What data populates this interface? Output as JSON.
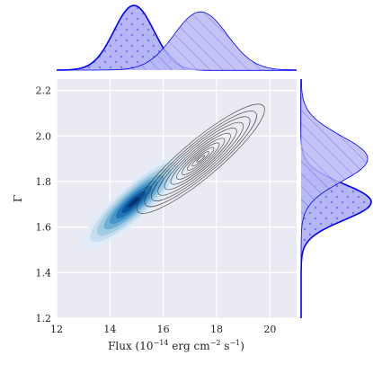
{
  "chart_data": {
    "type": "kde-joint",
    "xlabel": "Flux (10",
    "xlabel_sup1": "−14",
    "xlabel_mid": " erg cm",
    "xlabel_sup2": "−2",
    "xlabel_mid2": " s",
    "xlabel_sup3": "−1",
    "xlabel_end": ")",
    "ylabel": "Γ",
    "xlim": [
      12,
      21
    ],
    "ylim": [
      1.2,
      2.25
    ],
    "x_ticks": [
      12,
      14,
      16,
      18,
      20
    ],
    "y_ticks": [
      1.2,
      1.4,
      1.6,
      1.8,
      2.0,
      2.2
    ],
    "x_tick_labels": [
      "12",
      "14",
      "16",
      "18",
      "20"
    ],
    "y_tick_labels": [
      "1.2",
      "1.4",
      "1.6",
      "1.8",
      "2.0",
      "2.2"
    ],
    "grid": true,
    "series": [
      {
        "style": "filled-contours",
        "color": "#2171b5",
        "marginal_pattern": "dots",
        "center": [
          14.9,
          1.71
        ],
        "sigma": [
          0.75,
          0.08
        ],
        "rho": 0.88
      },
      {
        "style": "line-contours",
        "color": "#333333",
        "marginal_pattern": "hatch",
        "center": [
          17.4,
          1.9
        ],
        "sigma": [
          1.0,
          0.1
        ],
        "rho": 0.9
      }
    ],
    "marginal_color": "#0000ff",
    "marginal_fill": "#a9a9f5"
  }
}
